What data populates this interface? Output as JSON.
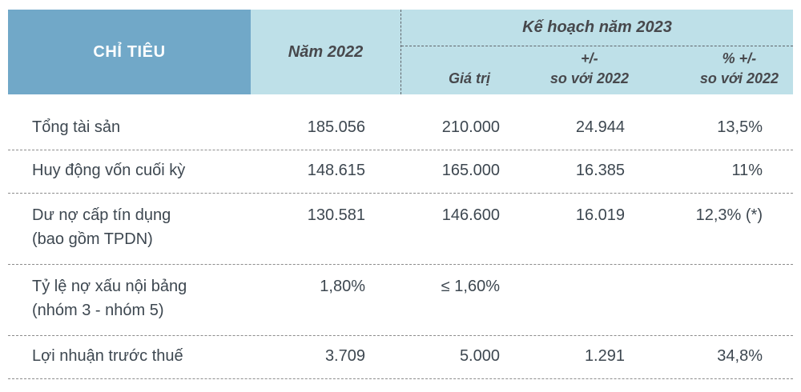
{
  "colors": {
    "header-dark": "#71A8C8",
    "header-light": "#BEE0E8",
    "header-text-light": "#FFFFFF",
    "header-text-dark": "#47484C",
    "body-text": "#3D4750",
    "row-divider": "#8C8C8C",
    "header-divider": "#5F646A"
  },
  "table": {
    "header": {
      "col_label": "CHỈ TIÊU",
      "col_year": "Năm 2022",
      "group_title": "Kế hoạch năm 2023",
      "sub_value": "Giá trị",
      "sub_delta_line1": "+/-",
      "sub_delta_line2": "so với 2022",
      "sub_pct_line1": "% +/-",
      "sub_pct_line2": "so với 2022"
    },
    "rows": [
      {
        "label": "Tổng tài sản",
        "label2": "",
        "y2022": "185.056",
        "value": "210.000",
        "delta": "24.944",
        "pct": "13,5%"
      },
      {
        "label": "Huy động vốn cuối kỳ",
        "label2": "",
        "y2022": "148.615",
        "value": "165.000",
        "delta": "16.385",
        "pct": "11%"
      },
      {
        "label": "Dư nợ cấp tín dụng",
        "label2": "(bao gồm TPDN)",
        "y2022": "130.581",
        "value": "146.600",
        "delta": "16.019",
        "pct": "12,3% (*)"
      },
      {
        "label": "Tỷ lệ nợ xấu nội bảng",
        "label2": "(nhóm 3 - nhóm 5)",
        "y2022": "1,80%",
        "value": "≤ 1,60%",
        "delta": "",
        "pct": ""
      },
      {
        "label": "Lợi nhuận trước thuế",
        "label2": "",
        "y2022": "3.709",
        "value": "5.000",
        "delta": "1.291",
        "pct": "34,8%"
      }
    ]
  }
}
